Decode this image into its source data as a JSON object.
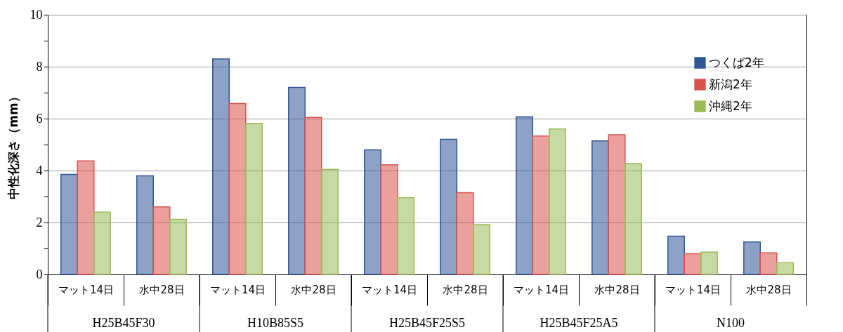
{
  "chart_data": {
    "type": "bar",
    "ylabel": "中性化深さ（mm）",
    "categories": [
      "マット14日",
      "水中28日",
      "マット14日",
      "水中28日",
      "マット14日",
      "水中28日",
      "マット14日",
      "水中28日",
      "マット14日",
      "水中28日"
    ],
    "annotations": [
      "H25B45F30",
      "H10B85S5",
      "H25B45F25S5",
      "H25B45F25A5",
      "N100"
    ],
    "series": [
      {
        "name": "つくば2年",
        "color": "#2f5597",
        "values": [
          3.85,
          3.8,
          8.3,
          7.2,
          4.8,
          5.2,
          6.07,
          5.14,
          1.47,
          1.25
        ]
      },
      {
        "name": "新潟2年",
        "color": "#d9534f",
        "values": [
          4.37,
          2.6,
          6.58,
          6.05,
          4.22,
          3.15,
          5.33,
          5.38,
          0.8,
          0.83
        ]
      },
      {
        "name": "沖縄2年",
        "color": "#9bbb59",
        "values": [
          2.4,
          2.12,
          5.82,
          4.05,
          2.95,
          1.92,
          5.6,
          4.27,
          0.86,
          0.45
        ]
      }
    ],
    "ylim": [
      0,
      10
    ],
    "yticks": [
      0,
      {
        "value": 1,
        "label": null
      },
      2,
      {
        "value": 3,
        "label": null
      },
      4,
      {
        "value": 5,
        "label": null
      },
      6,
      {
        "value": 7,
        "label": null
      },
      8,
      {
        "value": 9,
        "label": null
      },
      10
    ],
    "grid": "y",
    "legend": "top right"
  }
}
